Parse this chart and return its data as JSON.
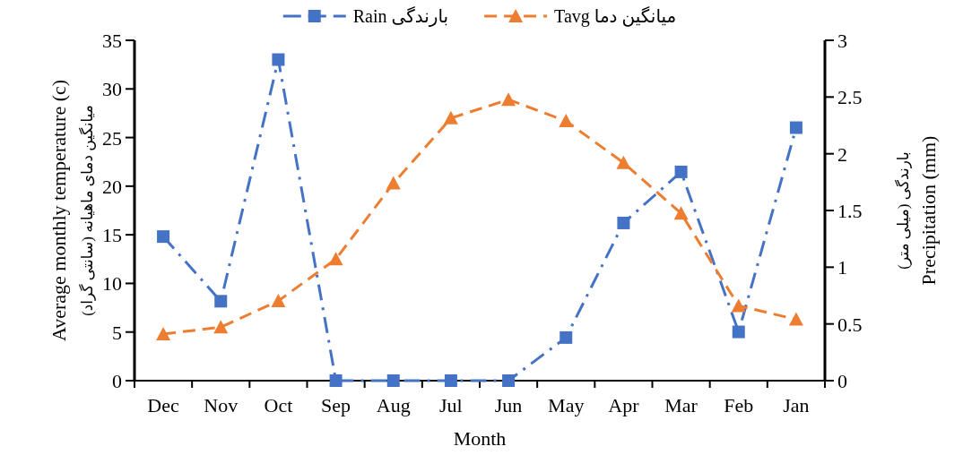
{
  "chart_data": {
    "type": "line",
    "categories": [
      "Dec",
      "Nov",
      "Oct",
      "Sep",
      "Aug",
      "Jul",
      "Jun",
      "May",
      "Apr",
      "Mar",
      "Feb",
      "Jan"
    ],
    "series": [
      {
        "name": "Rain بارندگی",
        "color": "#4472c4",
        "axis": "y2",
        "marker": "square",
        "line_style": "dashdot",
        "values": [
          1.27,
          0.7,
          2.83,
          0,
          0,
          0,
          0,
          0.38,
          1.39,
          1.84,
          0.43,
          2.23
        ]
      },
      {
        "name": "Tavg میانگین دما",
        "color": "#ed7d31",
        "marker": "triangle",
        "line_style": "dashed",
        "values": [
          4.8,
          5.5,
          8.2,
          12.5,
          20.3,
          27.0,
          28.9,
          26.7,
          22.4,
          17.2,
          7.7,
          6.3
        ]
      }
    ],
    "xlabel": "Month",
    "ylabel": "میانگین دمای ماهیانه (سانتی گراد)\nAverage monthly temperature (c)",
    "y2label": "بارندگی (میلی متر)\nPrecipitation (mm)",
    "ylim": [
      0,
      35
    ],
    "yticks": [
      0,
      5,
      10,
      15,
      20,
      25,
      30,
      35
    ],
    "y2lim": [
      0,
      3
    ],
    "y2ticks": [
      0,
      0.5,
      1,
      1.5,
      2,
      2.5,
      3
    ],
    "legend": "top",
    "grid": false
  }
}
